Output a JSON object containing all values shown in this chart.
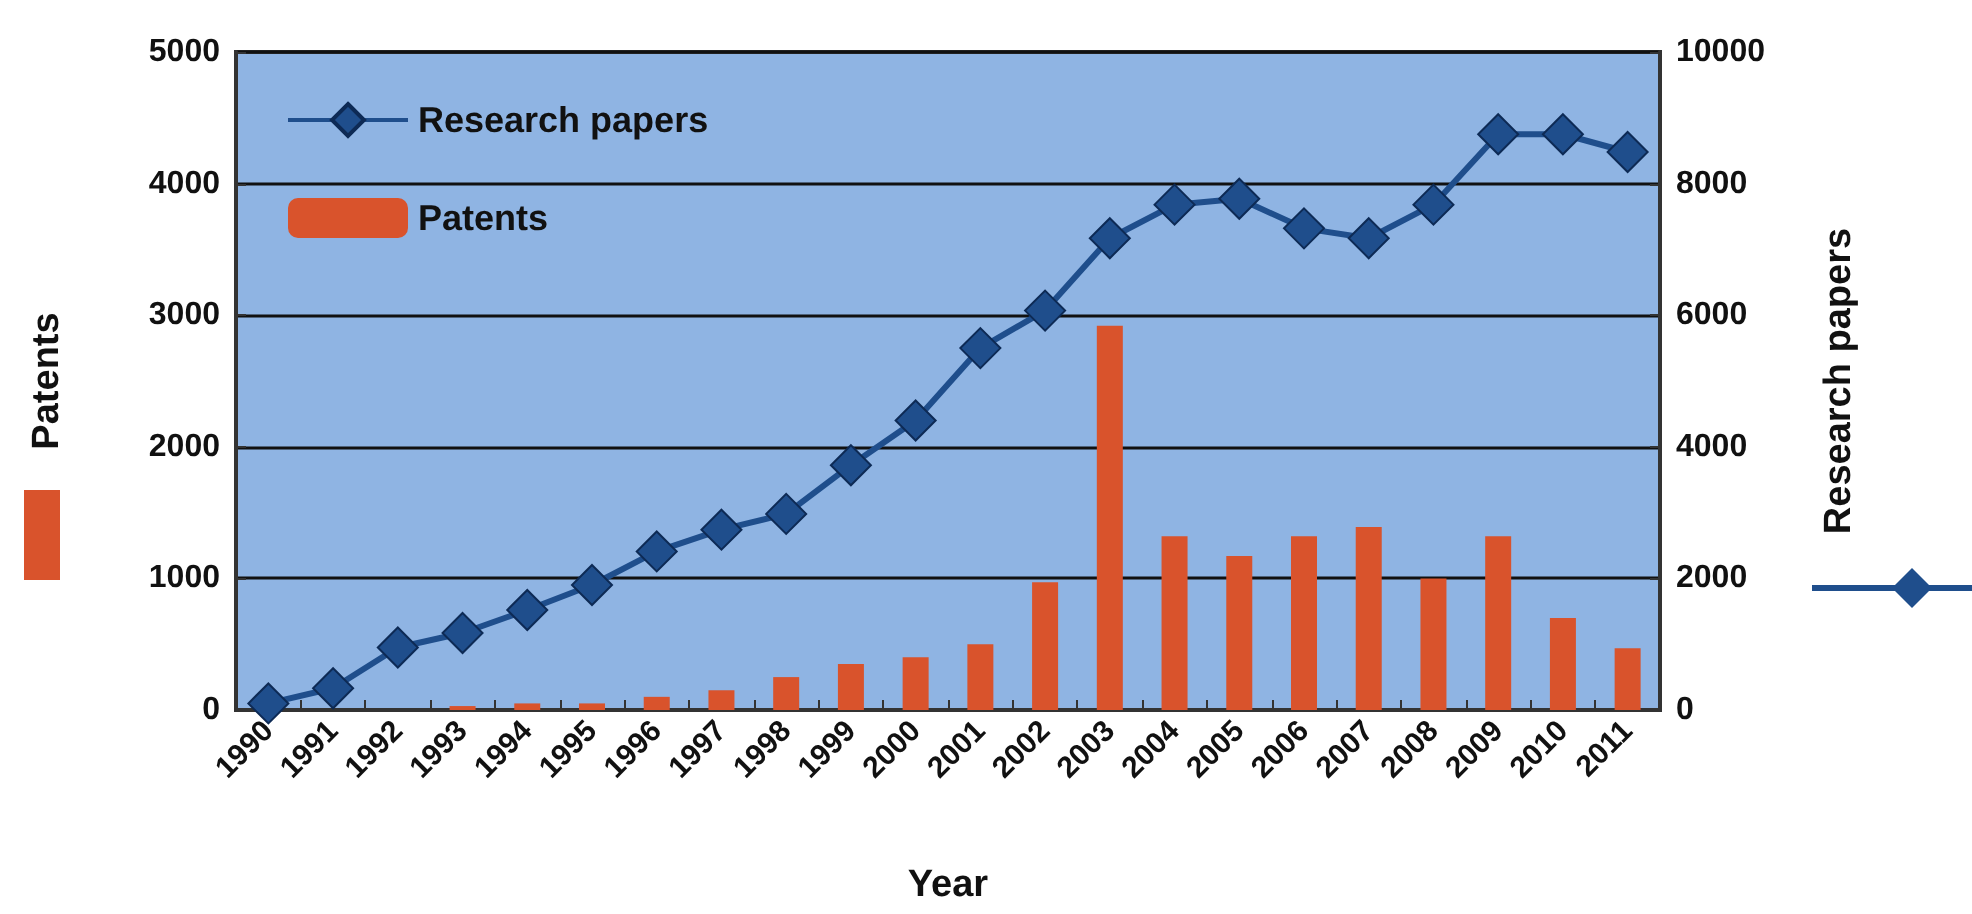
{
  "chart_data": {
    "type": "bar",
    "xlabel": "Year",
    "ylabel": "Patents",
    "y2label": "Research papers",
    "categories": [
      "1990",
      "1991",
      "1992",
      "1993",
      "1994",
      "1995",
      "1996",
      "1997",
      "1998",
      "1999",
      "2000",
      "2001",
      "2002",
      "2003",
      "2004",
      "2005",
      "2006",
      "2007",
      "2008",
      "2009",
      "2010",
      "2011"
    ],
    "series": [
      {
        "name": "Research papers",
        "type": "line",
        "axis": "y2",
        "color": "#1f4e8c",
        "marker": "diamond",
        "values": [
          100,
          330,
          950,
          1170,
          1520,
          1900,
          2410,
          2740,
          2980,
          3720,
          4400,
          5500,
          6070,
          7170,
          7680,
          7770,
          7320,
          7170,
          7680,
          8750,
          8750,
          8480
        ]
      },
      {
        "name": "Patents",
        "color": "#d9532c",
        "values": [
          0,
          0,
          0,
          30,
          50,
          50,
          100,
          150,
          250,
          350,
          400,
          500,
          970,
          2920,
          1320,
          1170,
          1320,
          1390,
          1000,
          1320,
          700,
          470
        ]
      }
    ],
    "ylim": [
      0,
      5000
    ],
    "yticks": [
      0,
      1000,
      2000,
      3000,
      4000,
      5000
    ],
    "y2lim": [
      0,
      10000
    ],
    "y2ticks": [
      0,
      2000,
      4000,
      6000,
      8000,
      10000
    ],
    "grid": "y",
    "legend": "top left"
  }
}
